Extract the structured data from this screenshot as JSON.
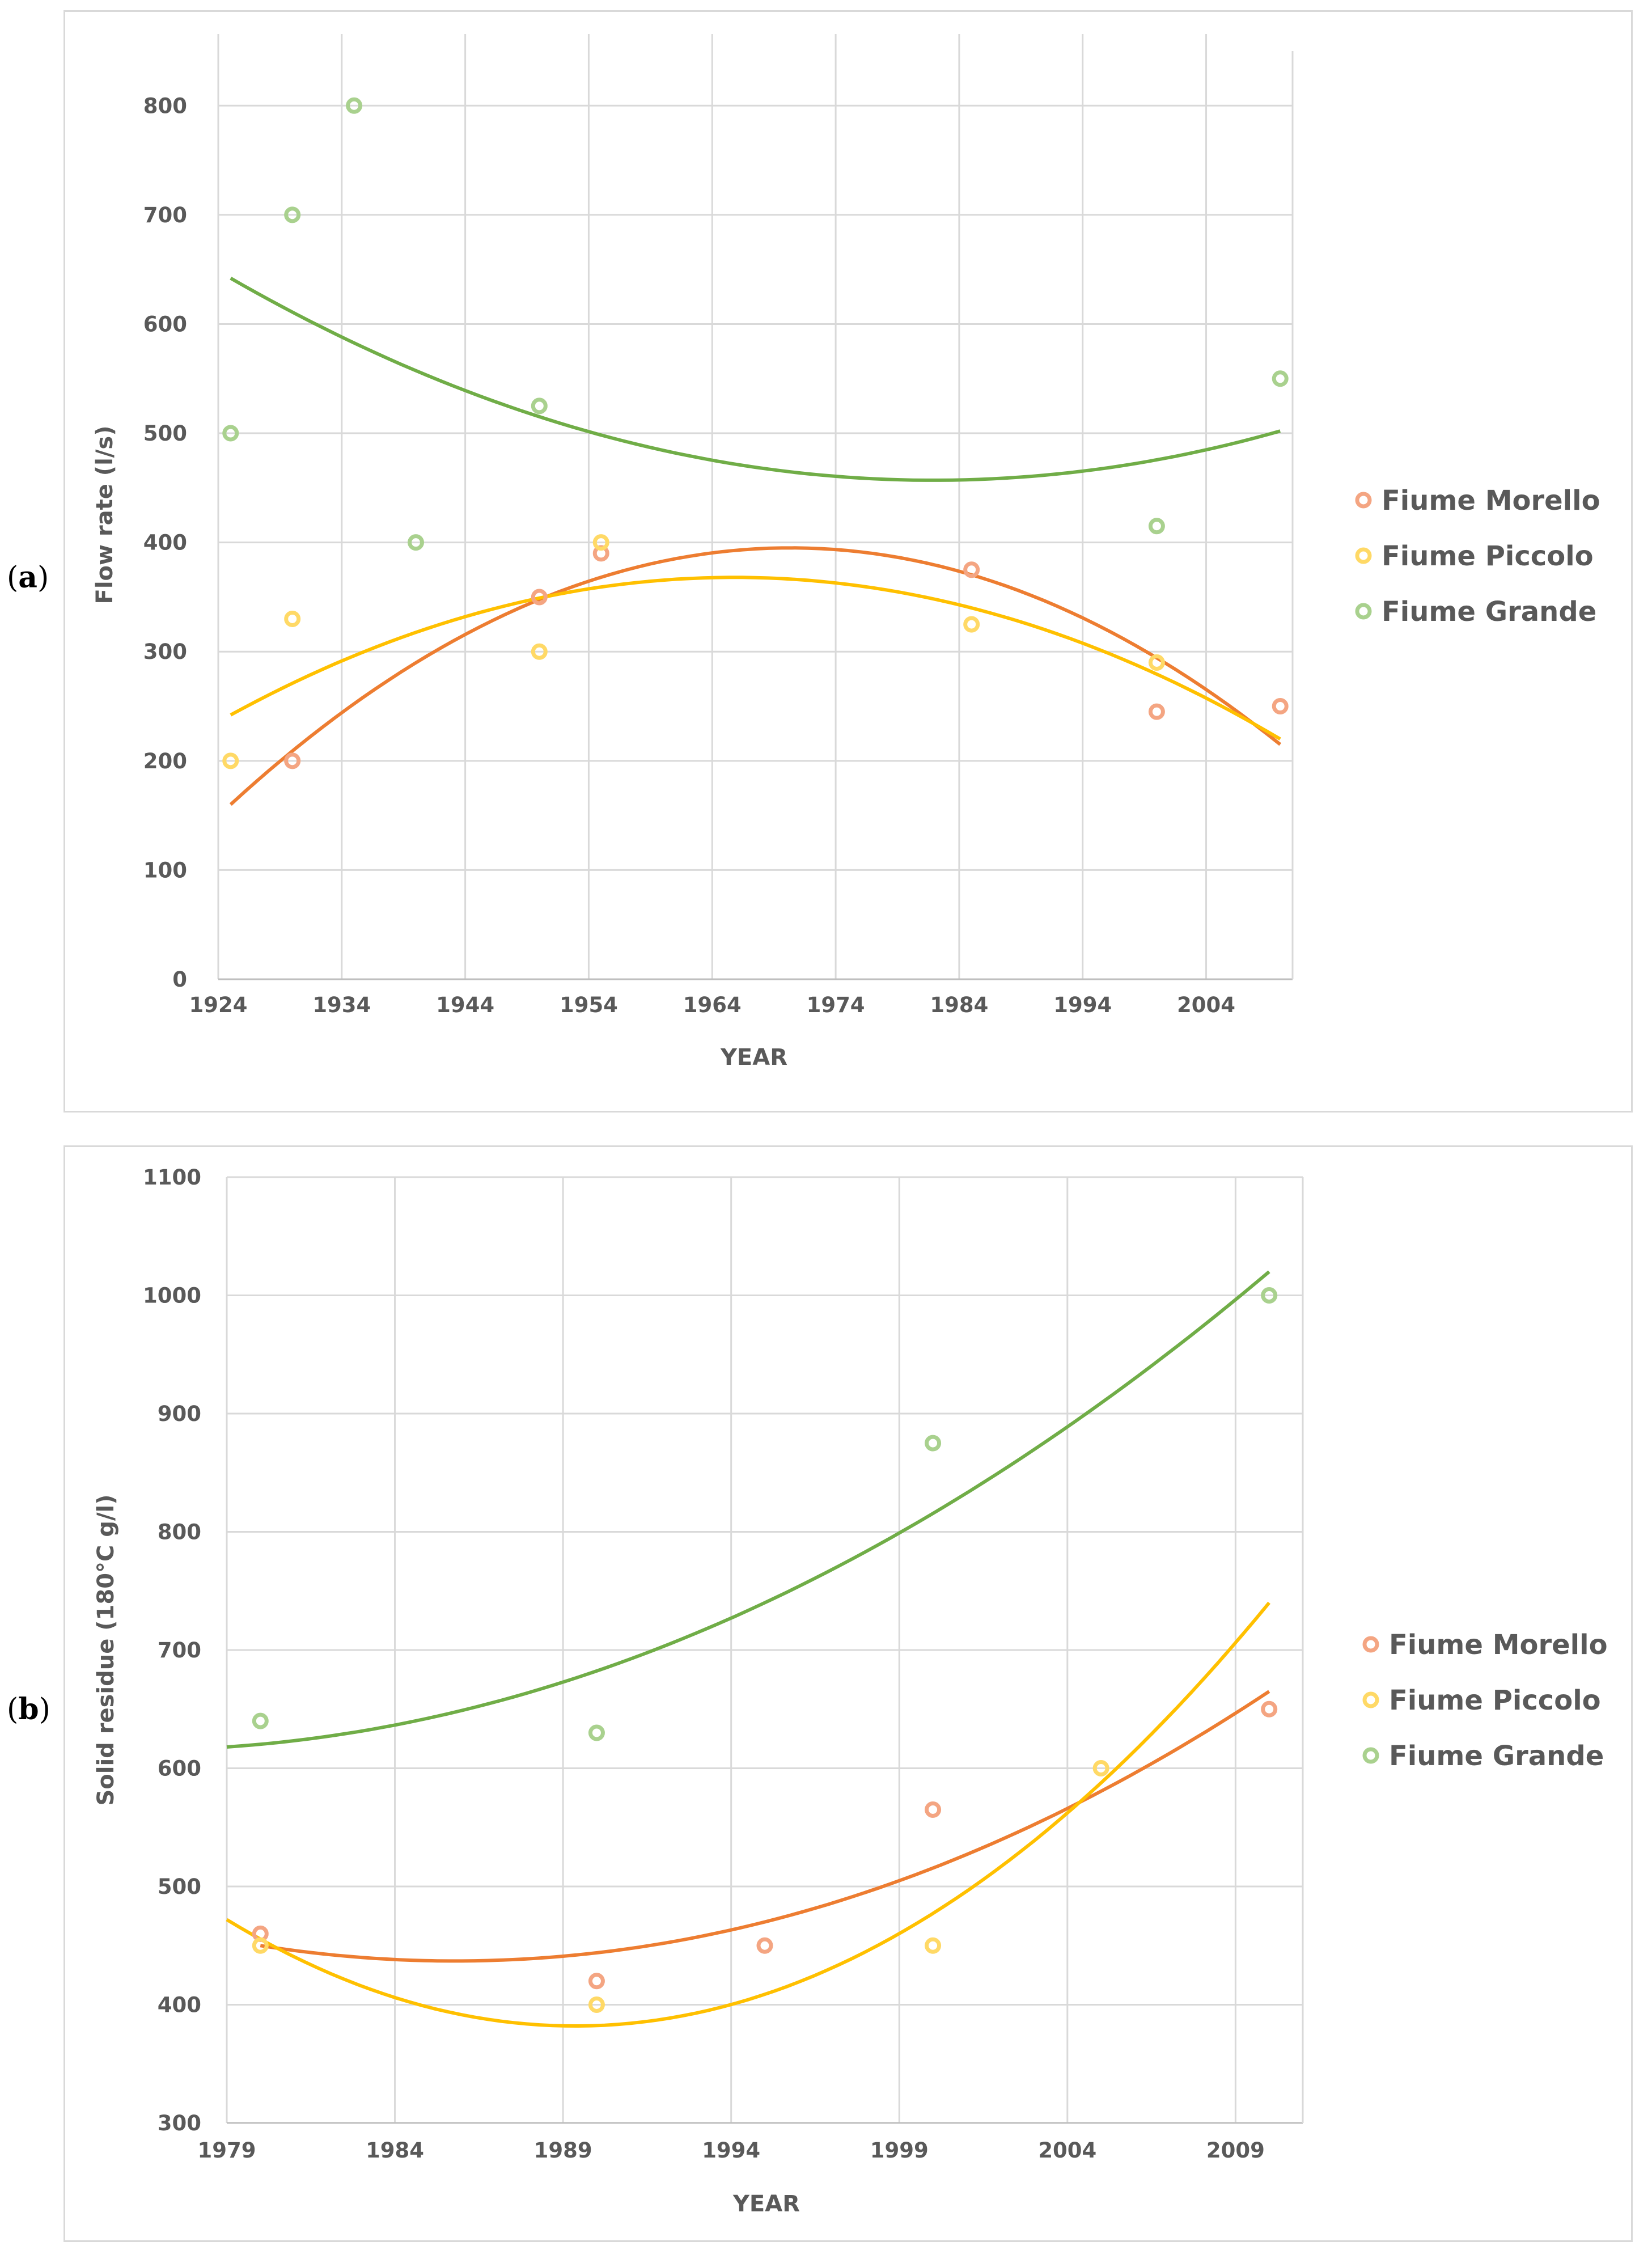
{
  "panels": [
    {
      "label": "a"
    },
    {
      "label": "b"
    }
  ],
  "chart_data": [
    {
      "type": "scatter",
      "panel": "a",
      "title": "",
      "xlabel": "YEAR",
      "ylabel": "Flow rate (l/s)",
      "xlim": [
        1924,
        2011
      ],
      "ylim": [
        0,
        850
      ],
      "xticks": [
        1924,
        1934,
        1944,
        1954,
        1964,
        1974,
        1984,
        1994,
        2004
      ],
      "yticks": [
        0,
        100,
        200,
        300,
        400,
        500,
        600,
        700,
        800
      ],
      "grid": "vertical",
      "legend_position": "right",
      "series": [
        {
          "name": "Fiume Morello",
          "color": "#F4A582",
          "trend_color": "#ED7D31",
          "points": [
            [
              1930,
              200
            ],
            [
              1950,
              350
            ],
            [
              1955,
              390
            ],
            [
              1985,
              375
            ],
            [
              2000,
              245
            ],
            [
              2010,
              250
            ]
          ],
          "trend": {
            "type": "poly2",
            "x": [
              1925,
              1970,
              2010
            ],
            "y": [
              160,
              395,
              215
            ]
          }
        },
        {
          "name": "Fiume Piccolo",
          "color": "#FFD966",
          "trend_color": "#FFC000",
          "points": [
            [
              1925,
              200
            ],
            [
              1930,
              330
            ],
            [
              1950,
              300
            ],
            [
              1955,
              400
            ],
            [
              1985,
              325
            ],
            [
              2000,
              290
            ]
          ],
          "trend": {
            "type": "poly2",
            "x": [
              1925,
              1966,
              2010
            ],
            "y": [
              242,
              368,
              220
            ]
          }
        },
        {
          "name": "Fiume Grande",
          "color": "#A9D18E",
          "trend_color": "#70AD47",
          "points": [
            [
              1925,
              500
            ],
            [
              1930,
              700
            ],
            [
              1935,
              800
            ],
            [
              1940,
              400
            ],
            [
              1950,
              525
            ],
            [
              2000,
              415
            ],
            [
              2010,
              550
            ]
          ],
          "trend": {
            "type": "poly2",
            "x": [
              1925,
              1981,
              2010
            ],
            "y": [
              642,
              457,
              502
            ]
          }
        }
      ]
    },
    {
      "type": "scatter",
      "panel": "b",
      "title": "",
      "xlabel": "YEAR",
      "ylabel": "Solid residue (180°C g/l)",
      "xlim": [
        1979,
        2011
      ],
      "ylim": [
        300,
        1100
      ],
      "xticks": [
        1979,
        1984,
        1989,
        1994,
        1999,
        2004,
        2009
      ],
      "yticks": [
        300,
        400,
        500,
        600,
        700,
        800,
        900,
        1000,
        1100
      ],
      "grid": "both",
      "legend_position": "right",
      "series": [
        {
          "name": "Fiume Morello",
          "color": "#F4A582",
          "trend_color": "#ED7D31",
          "points": [
            [
              1980,
              460
            ],
            [
              1990,
              420
            ],
            [
              1995,
              450
            ],
            [
              2000,
              565
            ],
            [
              2010,
              650
            ]
          ],
          "trend": {
            "type": "poly2",
            "x": [
              1980,
              1986,
              2010
            ],
            "y": [
              450,
              437,
              665
            ]
          }
        },
        {
          "name": "Fiume Piccolo",
          "color": "#FFD966",
          "trend_color": "#FFC000",
          "points": [
            [
              1980,
              450
            ],
            [
              1990,
              400
            ],
            [
              2000,
              450
            ],
            [
              2005,
              600
            ]
          ],
          "trend": {
            "type": "poly2",
            "x": [
              1979,
              1989.5,
              2010
            ],
            "y": [
              472,
              382,
              740
            ]
          }
        },
        {
          "name": "Fiume Grande",
          "color": "#A9D18E",
          "trend_color": "#70AD47",
          "points": [
            [
              1980,
              640
            ],
            [
              1990,
              630
            ],
            [
              2000,
              875
            ],
            [
              2010,
              1000
            ]
          ],
          "trend": {
            "type": "poly2",
            "x": [
              1979,
              1995,
              2010
            ],
            "y": [
              618,
              740,
              1020
            ]
          }
        }
      ]
    }
  ]
}
